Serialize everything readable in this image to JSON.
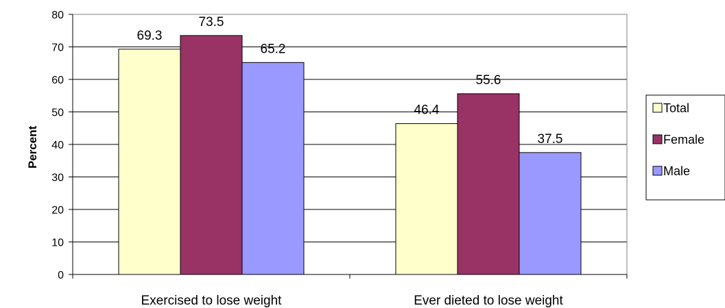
{
  "chart_data": {
    "type": "bar",
    "categories": [
      "Exercised to lose weight",
      "Ever dieted to lose weight"
    ],
    "series": [
      {
        "name": "Total",
        "values": [
          69.3,
          46.4
        ],
        "color": "#FFFFCC"
      },
      {
        "name": "Female",
        "values": [
          73.5,
          55.6
        ],
        "color": "#993366"
      },
      {
        "name": "Male",
        "values": [
          65.2,
          37.5
        ],
        "color": "#9999FF"
      }
    ],
    "value_labels": [
      [
        "69.3",
        "46.4"
      ],
      [
        "73.5",
        "55.6"
      ],
      [
        "65.2",
        "37.5"
      ]
    ],
    "ylabel": "Percent",
    "xlabel": "",
    "ylim": [
      0,
      80
    ],
    "yticks": [
      0,
      10,
      20,
      30,
      40,
      50,
      60,
      70,
      80
    ],
    "grid": true,
    "legend_position": "right"
  }
}
